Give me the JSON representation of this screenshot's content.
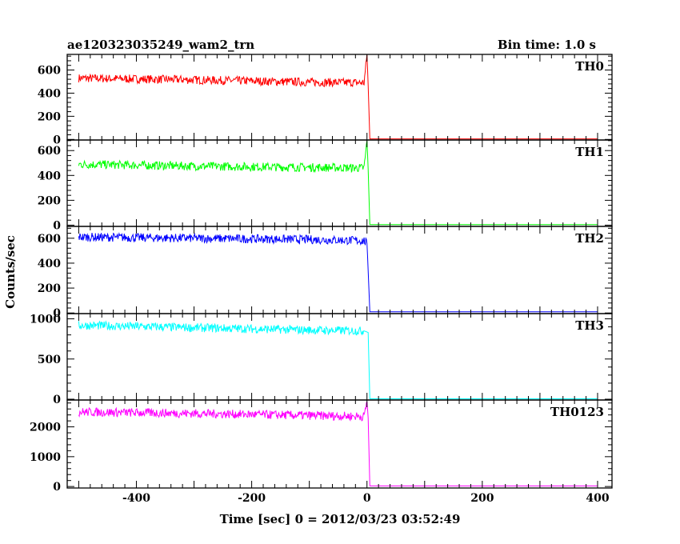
{
  "chart_data": {
    "type": "line",
    "title": "ae120323035249_wam2_trn",
    "subtitle": "Bin time: 1.0 s",
    "xlabel": "Time [sec] 0 = 2012/03/23 03:52:49",
    "ylabel": "Counts/sec",
    "xlim": [
      -520,
      425
    ],
    "x_ticks": [
      -400,
      -200,
      0,
      200,
      400
    ],
    "grid": false,
    "panels": [
      {
        "name": "TH0",
        "color": "#ff0000",
        "ylim": [
          -5,
          735
        ],
        "y_ticks": [
          0,
          200,
          400,
          600
        ],
        "series": [
          {
            "x": -500,
            "y": 530
          },
          {
            "x": -300,
            "y": 515
          },
          {
            "x": -100,
            "y": 495
          },
          {
            "x": -5,
            "y": 490
          },
          {
            "x": 0,
            "y": 730
          },
          {
            "x": 2,
            "y": 470
          },
          {
            "x": 5,
            "y": 5
          },
          {
            "x": 400,
            "y": 5
          }
        ]
      },
      {
        "name": "TH1",
        "color": "#00ff00",
        "ylim": [
          -10,
          685
        ],
        "y_ticks": [
          0,
          200,
          400,
          600
        ],
        "series": [
          {
            "x": -500,
            "y": 490
          },
          {
            "x": -300,
            "y": 475
          },
          {
            "x": -100,
            "y": 465
          },
          {
            "x": -5,
            "y": 460
          },
          {
            "x": 0,
            "y": 680
          },
          {
            "x": 2,
            "y": 450
          },
          {
            "x": 5,
            "y": 5
          },
          {
            "x": 400,
            "y": 5
          }
        ]
      },
      {
        "name": "TH2",
        "color": "#0000ff",
        "ylim": [
          -5,
          695
        ],
        "y_ticks": [
          0,
          200,
          400,
          600
        ],
        "series": [
          {
            "x": -500,
            "y": 610
          },
          {
            "x": -300,
            "y": 600
          },
          {
            "x": -100,
            "y": 590
          },
          {
            "x": -5,
            "y": 580
          },
          {
            "x": 0,
            "y": 560
          },
          {
            "x": 5,
            "y": 10
          },
          {
            "x": 400,
            "y": 10
          }
        ]
      },
      {
        "name": "TH3",
        "color": "#00ffff",
        "ylim": [
          -10,
          1065
        ],
        "y_ticks": [
          0,
          500,
          1000
        ],
        "series": [
          {
            "x": -500,
            "y": 920
          },
          {
            "x": -300,
            "y": 890
          },
          {
            "x": -100,
            "y": 860
          },
          {
            "x": -5,
            "y": 850
          },
          {
            "x": 2,
            "y": 830
          },
          {
            "x": 5,
            "y": 5
          },
          {
            "x": 400,
            "y": 5
          }
        ]
      },
      {
        "name": "TH0123",
        "color": "#ff00ff",
        "ylim": [
          -50,
          2900
        ],
        "y_ticks": [
          0,
          1000,
          2000
        ],
        "series": [
          {
            "x": -500,
            "y": 2500
          },
          {
            "x": -300,
            "y": 2450
          },
          {
            "x": -100,
            "y": 2380
          },
          {
            "x": -5,
            "y": 2350
          },
          {
            "x": 0,
            "y": 2850
          },
          {
            "x": 2,
            "y": 2300
          },
          {
            "x": 5,
            "y": 20
          },
          {
            "x": 400,
            "y": 20
          }
        ]
      }
    ]
  }
}
